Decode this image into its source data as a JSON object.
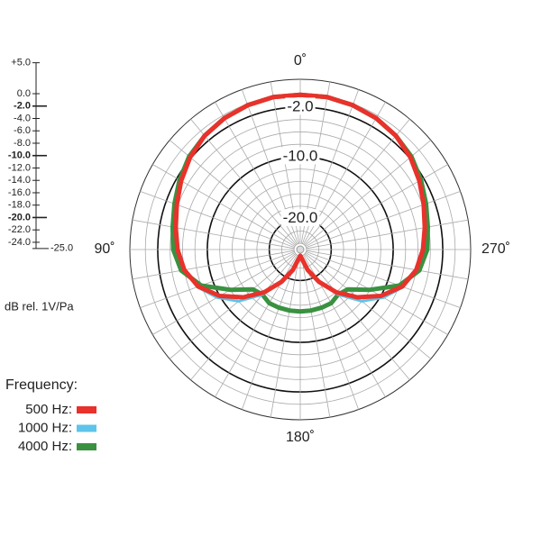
{
  "chart_data": {
    "type": "polar",
    "angles": [
      0,
      10,
      20,
      30,
      40,
      50,
      60,
      70,
      80,
      90,
      100,
      110,
      120,
      130,
      140,
      150,
      160,
      170,
      180,
      190,
      200,
      210,
      220,
      230,
      240,
      250,
      260,
      270,
      280,
      290,
      300,
      310,
      320,
      330,
      340,
      350
    ],
    "angle_ticks": [
      {
        "value": 0,
        "label": "0˚"
      },
      {
        "value": 90,
        "label": "90˚"
      },
      {
        "value": 180,
        "label": "180˚"
      },
      {
        "value": 270,
        "label": "270˚"
      }
    ],
    "angle_grid_step": 10,
    "rlim": [
      -25,
      2.5
    ],
    "rticks": [
      {
        "value": -2,
        "label": "-2.0"
      },
      {
        "value": -10,
        "label": "-10.0"
      },
      {
        "value": -20,
        "label": "-20.0"
      }
    ],
    "scale_ticks": [
      {
        "value": 5,
        "label": "+5.0"
      },
      {
        "value": 0,
        "label": "0.0"
      },
      {
        "value": -2,
        "label": "-2.0"
      },
      {
        "value": -4,
        "label": "-4.0"
      },
      {
        "value": -6,
        "label": "-6.0"
      },
      {
        "value": -8,
        "label": "-8.0"
      },
      {
        "value": -10,
        "label": "-10.0"
      },
      {
        "value": -12,
        "label": "-12.0"
      },
      {
        "value": -14,
        "label": "-14.0"
      },
      {
        "value": -16,
        "label": "-16.0"
      },
      {
        "value": -18,
        "label": "-18.0"
      },
      {
        "value": -20,
        "label": "-20.0"
      },
      {
        "value": -22,
        "label": "-22.0"
      },
      {
        "value": -24,
        "label": "-24.0"
      },
      {
        "value": -25,
        "label": "-25.0"
      }
    ],
    "major_ticks": [
      -2,
      -10,
      -20
    ],
    "scale_label": "dB rel. 1V/Pa",
    "legend_title": "Frequency:",
    "series": [
      {
        "name": "500 Hz:",
        "color": "#e8322b",
        "values": [
          0,
          0,
          -0.2,
          -0.5,
          -1,
          -1.8,
          -2.8,
          -3.8,
          -4.6,
          -5.2,
          -6,
          -7.5,
          -10,
          -13,
          -16,
          -19,
          -21.5,
          -23.5,
          -24,
          -23.5,
          -21.5,
          -19,
          -16,
          -13,
          -10,
          -7.5,
          -6,
          -5.2,
          -4.6,
          -3.8,
          -2.8,
          -1.8,
          -1,
          -0.5,
          -0.2,
          0
        ]
      },
      {
        "name": "1000 Hz:",
        "color": "#5ec4ea",
        "values": [
          0,
          0,
          -0.2,
          -0.5,
          -1,
          -1.8,
          -2.8,
          -3.8,
          -4.6,
          -5.2,
          -6,
          -7.3,
          -9.5,
          -12,
          -15.5,
          -19,
          -21.5,
          -23.5,
          -24,
          -23.5,
          -21.5,
          -19,
          -15.5,
          -12,
          -9.5,
          -7.3,
          -6,
          -5.2,
          -4.6,
          -3.8,
          -2.8,
          -1.8,
          -1,
          -0.5,
          -0.2,
          0
        ]
      },
      {
        "name": "4000 Hz:",
        "color": "#3a9140",
        "values": [
          0,
          0,
          -0.2,
          -0.5,
          -1,
          -1.6,
          -2.5,
          -3.4,
          -4.1,
          -4.5,
          -5.5,
          -8,
          -12,
          -15,
          -15.5,
          -15,
          -15,
          -15,
          -15,
          -15,
          -15,
          -15,
          -15.5,
          -15,
          -12,
          -8,
          -5.5,
          -4.5,
          -4.1,
          -3.4,
          -2.5,
          -1.6,
          -1,
          -0.5,
          -0.2,
          0
        ]
      }
    ]
  }
}
